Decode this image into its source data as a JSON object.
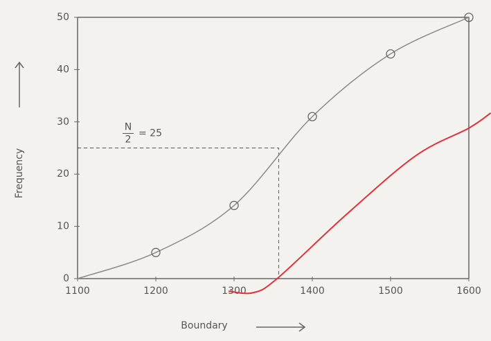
{
  "chart_data": {
    "type": "line",
    "x_label": "Boundary",
    "y_label": "Frequency",
    "xlim": [
      1100,
      1600
    ],
    "ylim": [
      0,
      50
    ],
    "xticks": [
      1100,
      1200,
      1300,
      1400,
      1500,
      1600
    ],
    "yticks": [
      0,
      10,
      20,
      30,
      40,
      50
    ],
    "series": [
      {
        "color": "#8a8a8a",
        "markers": true,
        "x": [
          1100,
          1200,
          1300,
          1400,
          1500,
          1600
        ],
        "values": [
          0,
          5,
          14,
          31,
          43,
          50
        ]
      },
      {
        "color": "#e0303a",
        "markers": false,
        "x": [
          1293,
          1324,
          1355,
          1443,
          1532,
          1600,
          1628
        ],
        "values": [
          -2.4,
          -2.7,
          0,
          12.2,
          23.5,
          28.8,
          31.7
        ]
      }
    ],
    "annotation": {
      "numerator": "N",
      "denominator": "2",
      "text": "= 25",
      "y": 25,
      "x": 1357
    }
  }
}
